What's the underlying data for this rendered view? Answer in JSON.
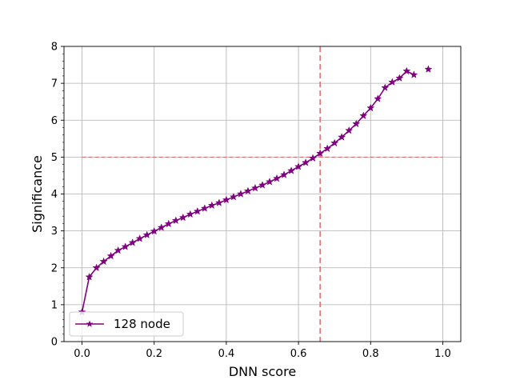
{
  "chart_data": {
    "type": "line",
    "xlabel": "DNN score",
    "ylabel": "Significance",
    "xlim": [
      -0.05,
      1.05
    ],
    "ylim": [
      0,
      8
    ],
    "x_ticks": [
      0.0,
      0.2,
      0.4,
      0.6,
      0.8,
      1.0
    ],
    "x_tick_labels": [
      "0.0",
      "0.2",
      "0.4",
      "0.6",
      "0.8",
      "1.0"
    ],
    "y_ticks": [
      0,
      1,
      2,
      3,
      4,
      5,
      6,
      7,
      8
    ],
    "y_tick_labels": [
      "0",
      "1",
      "2",
      "3",
      "4",
      "5",
      "6",
      "7",
      "8"
    ],
    "y_minor_step": 0.2,
    "grid": true,
    "legend_position": "lower-left",
    "series": [
      {
        "name": "128 node",
        "color": "#800080",
        "marker": "star",
        "x": [
          0.0,
          0.02,
          0.04,
          0.06,
          0.08,
          0.1,
          0.12,
          0.14,
          0.16,
          0.18,
          0.2,
          0.22,
          0.24,
          0.26,
          0.28,
          0.3,
          0.32,
          0.34,
          0.36,
          0.38,
          0.4,
          0.42,
          0.44,
          0.46,
          0.48,
          0.5,
          0.52,
          0.54,
          0.56,
          0.58,
          0.6,
          0.62,
          0.64,
          0.66,
          0.68,
          0.7,
          0.72,
          0.74,
          0.76,
          0.78,
          0.8,
          0.82,
          0.84,
          0.86,
          0.88,
          0.9,
          0.92,
          0.96
        ],
        "y": [
          0.8,
          1.75,
          2.0,
          2.17,
          2.32,
          2.47,
          2.57,
          2.68,
          2.79,
          2.89,
          2.99,
          3.09,
          3.19,
          3.28,
          3.36,
          3.45,
          3.53,
          3.61,
          3.69,
          3.76,
          3.84,
          3.92,
          4.0,
          4.08,
          4.16,
          4.24,
          4.33,
          4.42,
          4.52,
          4.63,
          4.74,
          4.85,
          4.97,
          5.1,
          5.23,
          5.38,
          5.54,
          5.72,
          5.9,
          6.12,
          6.33,
          6.58,
          6.88,
          7.03,
          7.14,
          7.33,
          7.23,
          7.38
        ],
        "connected_until_x": 0.92
      }
    ],
    "reference_lines": [
      {
        "orientation": "horizontal",
        "value": 5,
        "color": "#e06060",
        "style": "dashed",
        "x_range": [
          0,
          1
        ]
      },
      {
        "orientation": "vertical",
        "value": 0.66,
        "color": "#e06060",
        "style": "dashed"
      }
    ]
  }
}
